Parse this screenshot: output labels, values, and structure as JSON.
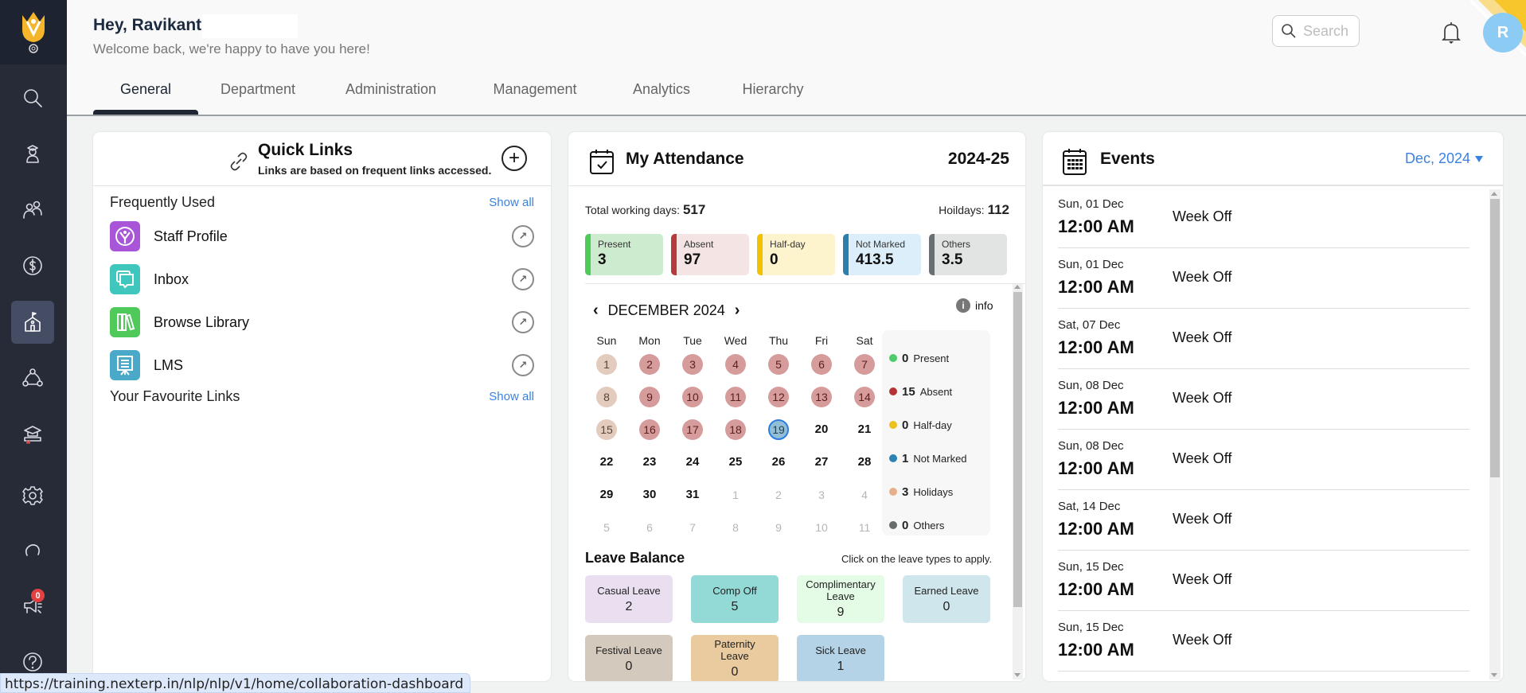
{
  "header": {
    "greeting": "Hey, Ravikant",
    "welcome": "Welcome back, we're happy to have you here!",
    "search_placeholder": "Search",
    "avatar_initial": "R",
    "tabs": [
      {
        "label": "General",
        "active": true
      },
      {
        "label": "Department"
      },
      {
        "label": "Administration"
      },
      {
        "label": "Management"
      },
      {
        "label": "Analytics"
      },
      {
        "label": "Hierarchy"
      }
    ]
  },
  "sidebar": {
    "items": [
      {
        "icon": "search-icon"
      },
      {
        "icon": "student-icon"
      },
      {
        "icon": "users-icon"
      },
      {
        "icon": "dollar-icon"
      },
      {
        "icon": "school-icon",
        "active": true
      },
      {
        "icon": "network-icon"
      },
      {
        "icon": "graduation-icon"
      },
      {
        "icon": "gear-icon"
      },
      {
        "icon": "refresh-icon"
      },
      {
        "icon": "megaphone-icon",
        "badge": "0"
      },
      {
        "icon": "help-icon"
      }
    ]
  },
  "quick_links": {
    "title": "Quick Links",
    "subtitle": "Links are based on frequent links accessed.",
    "frequently_used_label": "Frequently Used",
    "favourites_label": "Your Favourite Links",
    "show_all": "Show all",
    "items": [
      {
        "label": "Staff Profile",
        "color": "#a855d8"
      },
      {
        "label": "Inbox",
        "color": "#3fc7bd"
      },
      {
        "label": "Browse Library",
        "color": "#4ec95a"
      },
      {
        "label": "LMS",
        "color": "#4aa9c9"
      }
    ]
  },
  "attendance": {
    "title": "My Attendance",
    "year": "2024-25",
    "total_working_label": "Total working days:",
    "total_working": "517",
    "holidays_label": "Hoildays:",
    "holidays": "112",
    "stats": [
      {
        "label": "Present",
        "value": "3",
        "bg": "#cdeccf",
        "bar": "#4ec95a"
      },
      {
        "label": "Absent",
        "value": "97",
        "bg": "#f4e4e4",
        "bar": "#b43c3c"
      },
      {
        "label": "Half-day",
        "value": "0",
        "bg": "#fdf3cc",
        "bar": "#f2c200"
      },
      {
        "label": "Not Marked",
        "value": "413.5",
        "bg": "#dbeef9",
        "bar": "#2c7fa8"
      },
      {
        "label": "Others",
        "value": "3.5",
        "bg": "#e2e3e3",
        "bar": "#6a7071"
      }
    ],
    "calendar": {
      "month": "DECEMBER 2024",
      "info_label": "info",
      "weekdays": [
        "Sun",
        "Mon",
        "Tue",
        "Wed",
        "Thu",
        "Fri",
        "Sat"
      ],
      "weeks": [
        [
          {
            "d": "1",
            "s": "holiday"
          },
          {
            "d": "2",
            "s": "absent"
          },
          {
            "d": "3",
            "s": "absent"
          },
          {
            "d": "4",
            "s": "absent"
          },
          {
            "d": "5",
            "s": "absent"
          },
          {
            "d": "6",
            "s": "absent"
          },
          {
            "d": "7",
            "s": "absent"
          }
        ],
        [
          {
            "d": "8",
            "s": "holiday"
          },
          {
            "d": "9",
            "s": "absent"
          },
          {
            "d": "10",
            "s": "absent"
          },
          {
            "d": "11",
            "s": "absent"
          },
          {
            "d": "12",
            "s": "absent"
          },
          {
            "d": "13",
            "s": "absent"
          },
          {
            "d": "14",
            "s": "absent"
          }
        ],
        [
          {
            "d": "15",
            "s": "holiday"
          },
          {
            "d": "16",
            "s": "absent"
          },
          {
            "d": "17",
            "s": "absent"
          },
          {
            "d": "18",
            "s": "absent"
          },
          {
            "d": "19",
            "s": "today"
          },
          {
            "d": "20",
            "s": "plain"
          },
          {
            "d": "21",
            "s": "plain"
          }
        ],
        [
          {
            "d": "22",
            "s": "plain"
          },
          {
            "d": "23",
            "s": "plain"
          },
          {
            "d": "24",
            "s": "plain"
          },
          {
            "d": "25",
            "s": "plain"
          },
          {
            "d": "26",
            "s": "plain"
          },
          {
            "d": "27",
            "s": "plain"
          },
          {
            "d": "28",
            "s": "plain"
          }
        ],
        [
          {
            "d": "29",
            "s": "plain"
          },
          {
            "d": "30",
            "s": "plain"
          },
          {
            "d": "31",
            "s": "plain"
          },
          {
            "d": "1",
            "s": "other"
          },
          {
            "d": "2",
            "s": "other"
          },
          {
            "d": "3",
            "s": "other"
          },
          {
            "d": "4",
            "s": "other"
          }
        ],
        [
          {
            "d": "5",
            "s": "other"
          },
          {
            "d": "6",
            "s": "other"
          },
          {
            "d": "7",
            "s": "other"
          },
          {
            "d": "8",
            "s": "other"
          },
          {
            "d": "9",
            "s": "other"
          },
          {
            "d": "10",
            "s": "other"
          },
          {
            "d": "11",
            "s": "other"
          }
        ]
      ],
      "legend": [
        {
          "count": "0",
          "label": "Present",
          "color": "#4ecb6a"
        },
        {
          "count": "15",
          "label": "Absent",
          "color": "#b43434"
        },
        {
          "count": "0",
          "label": "Half-day",
          "color": "#eec21e"
        },
        {
          "count": "1",
          "label": "Not Marked",
          "color": "#2a83b3"
        },
        {
          "count": "3",
          "label": "Holidays",
          "color": "#e8b088"
        },
        {
          "count": "0",
          "label": "Others",
          "color": "#666b6c"
        }
      ]
    },
    "leave_balance": {
      "title": "Leave Balance",
      "hint": "Click on the leave types to apply.",
      "items": [
        {
          "label": "Casual Leave",
          "value": "2",
          "bg": "#eadff0"
        },
        {
          "label": "Comp Off",
          "value": "5",
          "bg": "#93d9d5"
        },
        {
          "label": "Complimentary Leave",
          "value": "9",
          "bg": "#e4fce6"
        },
        {
          "label": "Earned Leave",
          "value": "0",
          "bg": "#cfe7ec"
        },
        {
          "label": "Festival Leave",
          "value": "0",
          "bg": "#d3c9bd"
        },
        {
          "label": "Paternity Leave",
          "value": "0",
          "bg": "#e9cb9f"
        },
        {
          "label": "Sick Leave",
          "value": "1",
          "bg": "#b5d3e6"
        }
      ]
    }
  },
  "events": {
    "title": "Events",
    "month_select": "Dec, 2024",
    "items": [
      {
        "date": "Sun, 01 Dec",
        "time": "12:00 AM",
        "name": "Week Off"
      },
      {
        "date": "Sun, 01 Dec",
        "time": "12:00 AM",
        "name": "Week Off"
      },
      {
        "date": "Sat, 07 Dec",
        "time": "12:00 AM",
        "name": "Week Off"
      },
      {
        "date": "Sun, 08 Dec",
        "time": "12:00 AM",
        "name": "Week Off"
      },
      {
        "date": "Sun, 08 Dec",
        "time": "12:00 AM",
        "name": "Week Off"
      },
      {
        "date": "Sat, 14 Dec",
        "time": "12:00 AM",
        "name": "Week Off"
      },
      {
        "date": "Sun, 15 Dec",
        "time": "12:00 AM",
        "name": "Week Off"
      },
      {
        "date": "Sun, 15 Dec",
        "time": "12:00 AM",
        "name": "Week Off"
      }
    ]
  },
  "status_bar": {
    "url": "https://training.nexterp.in/nlp/nlp/v1/home/collaboration-dashboard"
  }
}
